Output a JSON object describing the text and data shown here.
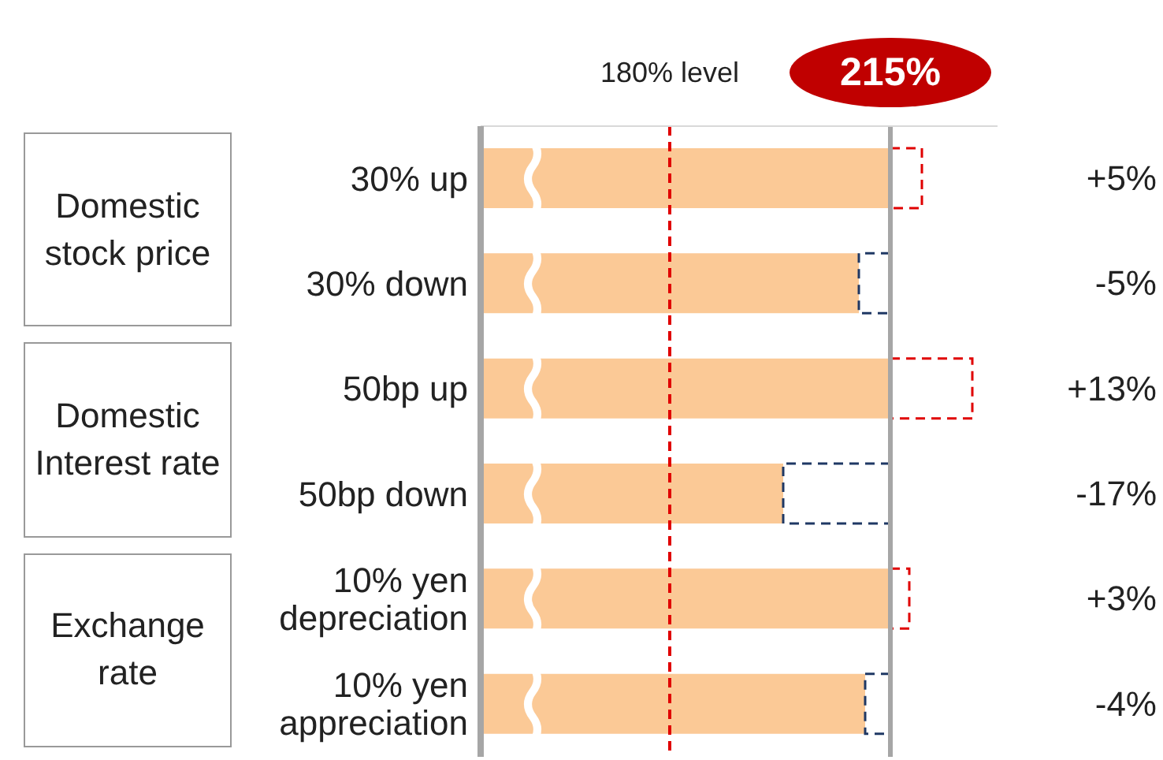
{
  "chart_data": {
    "type": "bar",
    "orientation": "horizontal",
    "categories": [
      "30% up",
      "30% down",
      "50bp up",
      "50bp down",
      "10% yen depreciation",
      "10% yen appreciation"
    ],
    "series": [
      {
        "color": "#fbc996",
        "values": [
          215,
          210,
          215,
          198,
          215,
          211
        ]
      },
      {
        "line_style": "dashed",
        "base": [
          215,
          215,
          215,
          215,
          215,
          215
        ],
        "values": [
          5,
          -5,
          13,
          -17,
          3,
          -4
        ],
        "colors": [
          "#e00000",
          "#1f3864",
          "#e00000",
          "#1f3864",
          "#e00000",
          "#1f3864"
        ],
        "value_labels": [
          "+5%",
          "-5%",
          "+13%",
          "-17%",
          "+3%",
          "-4%"
        ]
      }
    ],
    "xlim": [
      150,
      232
    ],
    "xticks": [
      {
        "value": 180,
        "label": "180% level"
      },
      {
        "value": 215,
        "label": "215%"
      }
    ],
    "grid": false,
    "legend": false,
    "ref_lines": [
      {
        "axis": "x",
        "value": 180,
        "color": "#e00000",
        "line_style": "dashed"
      },
      {
        "axis": "x",
        "value": 215,
        "color": "#a6a6a6",
        "line_style": "solid"
      }
    ],
    "annotations": [
      "Domestic stock price",
      "Domestic Interest rate",
      "Exchange rate"
    ]
  }
}
